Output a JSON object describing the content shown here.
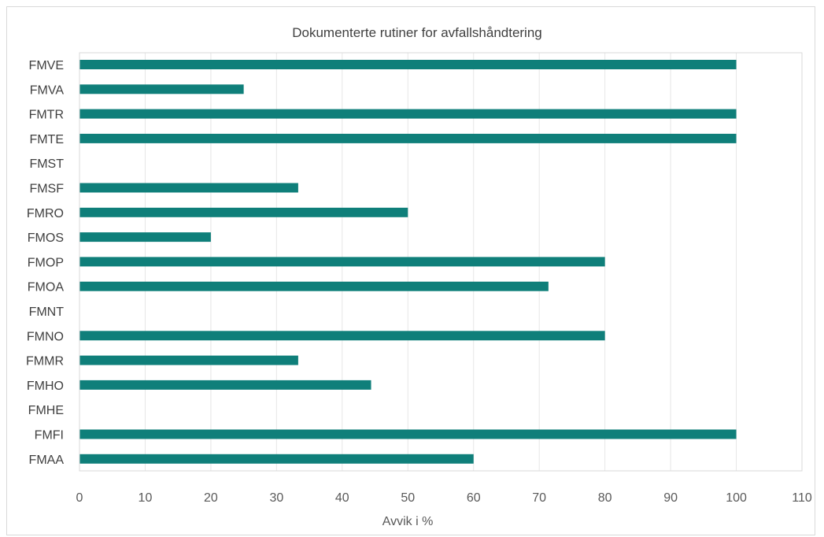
{
  "chart_data": {
    "type": "bar",
    "orientation": "horizontal",
    "title": "Dokumenterte rutiner for avfallshåndtering",
    "xlabel": "Avvik i %",
    "ylabel": "",
    "xlim": [
      0,
      110
    ],
    "xticks": [
      0,
      10,
      20,
      30,
      40,
      50,
      60,
      70,
      80,
      90,
      100,
      110
    ],
    "grid": true,
    "legend": "none",
    "bar_color": "#0f7f7a",
    "categories": [
      "FMVE",
      "FMVA",
      "FMTR",
      "FMTE",
      "FMST",
      "FMSF",
      "FMRO",
      "FMOS",
      "FMOP",
      "FMOA",
      "FMNT",
      "FMNO",
      "FMMR",
      "FMHO",
      "FMHE",
      "FMFI",
      "FMAA"
    ],
    "values": [
      100,
      25,
      100,
      100,
      0,
      33.3,
      50,
      20,
      80,
      71.4,
      0,
      80,
      33.3,
      44.4,
      0,
      100,
      60
    ]
  }
}
